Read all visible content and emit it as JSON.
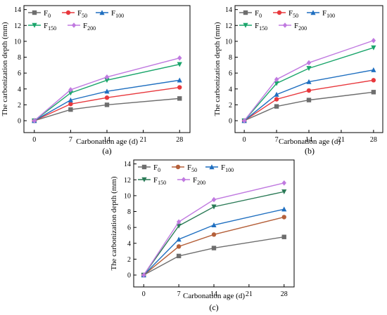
{
  "colors": {
    "F0": "#6e6e6e",
    "F50_ab": "#e8383d",
    "F50_c": "#b5603a",
    "F100": "#1f6fc0",
    "F150": "#1aa56b",
    "F150_c": "#2a7a56",
    "F200": "#c07ae0"
  },
  "chart_data": [
    {
      "type": "line",
      "panel_label": "(a)",
      "xlabel": "Carbonation age (d)",
      "ylabel": "The carbonization depth (mm)",
      "x": [
        0,
        7,
        14,
        28
      ],
      "xticks": [
        0,
        7,
        14,
        21,
        28
      ],
      "yticks": [
        0,
        2,
        4,
        6,
        8,
        10,
        12,
        14
      ],
      "xlim": [
        -2,
        30
      ],
      "ylim": [
        -1.5,
        14.5
      ],
      "grid": false,
      "legend_placement": "top-left",
      "series": [
        {
          "name": "F",
          "sub": "0",
          "values": [
            0,
            1.4,
            2.0,
            2.8
          ],
          "color_key": "F0",
          "marker": "square"
        },
        {
          "name": "F",
          "sub": "50",
          "values": [
            0,
            2.1,
            2.9,
            4.2
          ],
          "color_key": "F50_ab",
          "marker": "circle"
        },
        {
          "name": "F",
          "sub": "100",
          "values": [
            0,
            2.6,
            3.7,
            5.1
          ],
          "color_key": "F100",
          "marker": "triangle-up"
        },
        {
          "name": "F",
          "sub": "150",
          "values": [
            0,
            3.5,
            5.1,
            7.1
          ],
          "color_key": "F150",
          "marker": "triangle-down"
        },
        {
          "name": "F",
          "sub": "200",
          "values": [
            0,
            3.9,
            5.5,
            7.9
          ],
          "color_key": "F200",
          "marker": "diamond"
        }
      ]
    },
    {
      "type": "line",
      "panel_label": "(b)",
      "xlabel": "Carbonation age (d)",
      "ylabel": "The carbonization depth (mm)",
      "x": [
        0,
        7,
        14,
        28
      ],
      "xticks": [
        0,
        7,
        14,
        21,
        28
      ],
      "yticks": [
        0,
        2,
        4,
        6,
        8,
        10,
        12,
        14
      ],
      "xlim": [
        -2,
        30
      ],
      "ylim": [
        -1.5,
        14.5
      ],
      "grid": false,
      "legend_placement": "top-left",
      "series": [
        {
          "name": "F",
          "sub": "0",
          "values": [
            0,
            1.8,
            2.6,
            3.6
          ],
          "color_key": "F0",
          "marker": "square"
        },
        {
          "name": "F",
          "sub": "50",
          "values": [
            0,
            2.7,
            3.8,
            5.1
          ],
          "color_key": "F50_ab",
          "marker": "circle"
        },
        {
          "name": "F",
          "sub": "100",
          "values": [
            0,
            3.3,
            4.9,
            6.4
          ],
          "color_key": "F100",
          "marker": "triangle-up"
        },
        {
          "name": "F",
          "sub": "150",
          "values": [
            0,
            4.7,
            6.6,
            9.2
          ],
          "color_key": "F150",
          "marker": "triangle-down"
        },
        {
          "name": "F",
          "sub": "200",
          "values": [
            0,
            5.2,
            7.3,
            10.1
          ],
          "color_key": "F200",
          "marker": "diamond"
        }
      ]
    },
    {
      "type": "line",
      "panel_label": "(c)",
      "xlabel": "Carbonation age (d)",
      "ylabel": "The carbonization depth (mm)",
      "x": [
        0,
        7,
        14,
        28
      ],
      "xticks": [
        0,
        7,
        14,
        21,
        28
      ],
      "yticks": [
        0,
        2,
        4,
        6,
        8,
        10,
        12,
        14
      ],
      "xlim": [
        -2,
        30
      ],
      "ylim": [
        -1.5,
        14.5
      ],
      "grid": false,
      "legend_placement": "top-left",
      "series": [
        {
          "name": "F",
          "sub": "0",
          "values": [
            0,
            2.4,
            3.4,
            4.8
          ],
          "color_key": "F0",
          "marker": "square"
        },
        {
          "name": "F",
          "sub": "50",
          "values": [
            0,
            3.6,
            5.1,
            7.3
          ],
          "color_key": "F50_c",
          "marker": "circle"
        },
        {
          "name": "F",
          "sub": "100",
          "values": [
            0,
            4.5,
            6.3,
            8.3
          ],
          "color_key": "F100",
          "marker": "triangle-up"
        },
        {
          "name": "F",
          "sub": "150",
          "values": [
            0,
            6.2,
            8.6,
            10.5
          ],
          "color_key": "F150_c",
          "marker": "triangle-down"
        },
        {
          "name": "F",
          "sub": "200",
          "values": [
            0,
            6.7,
            9.5,
            11.6
          ],
          "color_key": "F200",
          "marker": "diamond"
        }
      ]
    }
  ]
}
